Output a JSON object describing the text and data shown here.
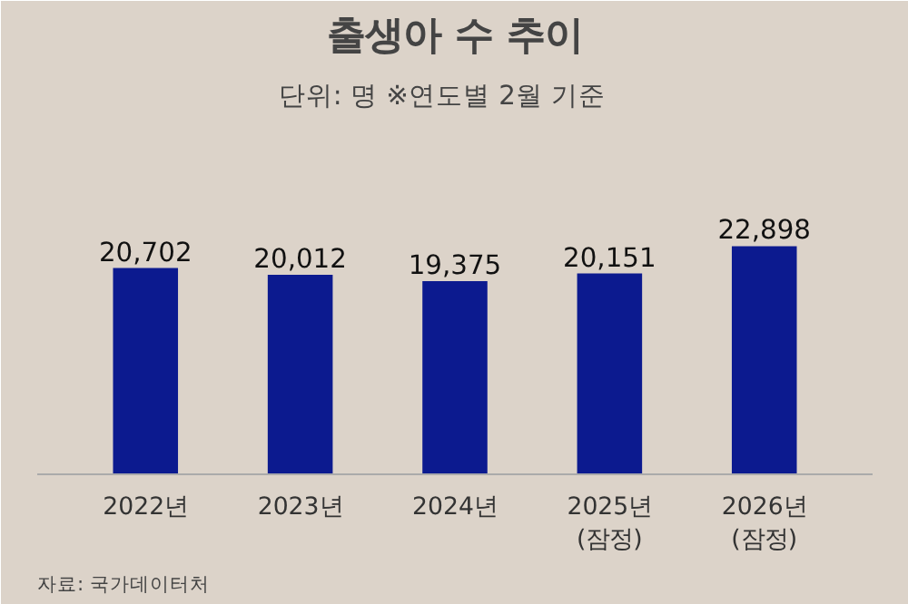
{
  "chart_data": {
    "type": "bar",
    "title": "출생아 수 추이",
    "subtitle": "단위: 명    ※연도별 2월 기준",
    "categories": [
      "2022년",
      "2023년",
      "2024년",
      "2025년\n(잠정)",
      "2026년\n(잠정)"
    ],
    "values": [
      20702,
      20012,
      19375,
      20151,
      22898
    ],
    "value_labels": [
      "20,702",
      "20,012",
      "19,375",
      "20,151",
      "22,898"
    ],
    "color": "#0c1a8f",
    "annotations": [
      "자료: 국가데이터처"
    ]
  }
}
